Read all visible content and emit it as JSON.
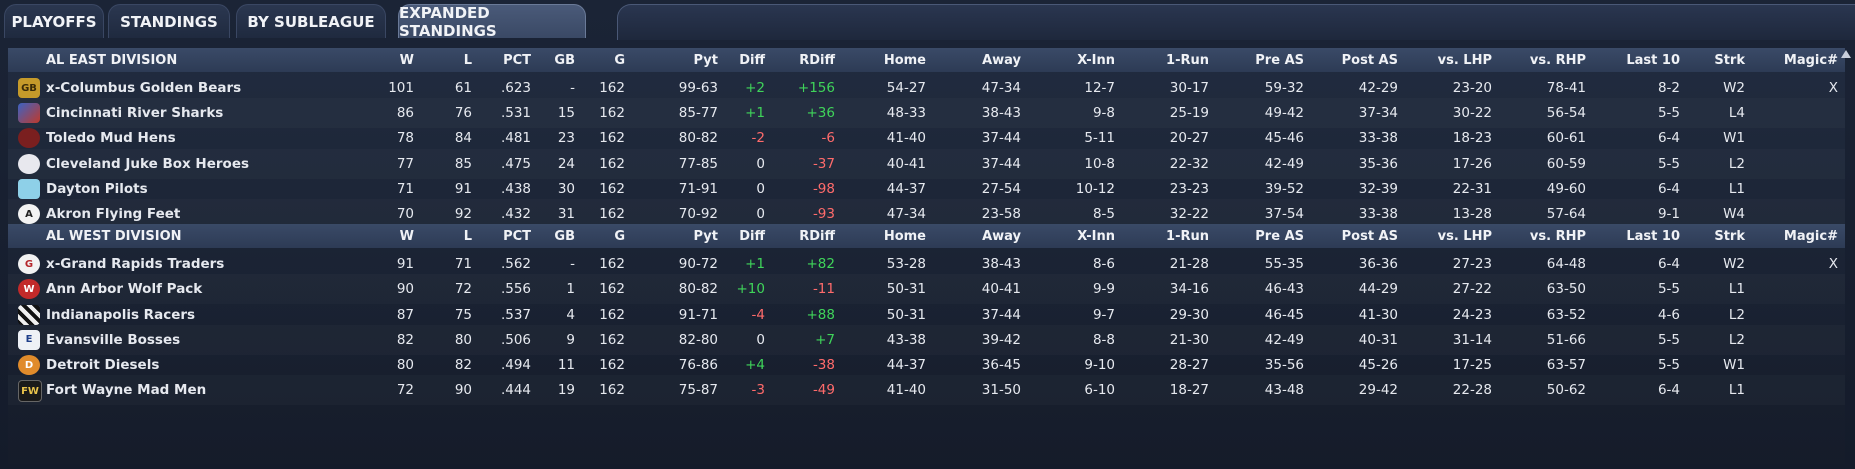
{
  "tabs": [
    {
      "label": "PLAYOFFS",
      "active": false
    },
    {
      "label": "STANDINGS",
      "active": false
    },
    {
      "label": "BY SUBLEAGUE",
      "active": false
    },
    {
      "label": "EXPANDED STANDINGS",
      "active": true
    }
  ],
  "columns": [
    "W",
    "L",
    "PCT",
    "GB",
    "G",
    "Pyt",
    "Diff",
    "RDiff",
    "Home",
    "Away",
    "X-Inn",
    "1-Run",
    "Pre AS",
    "Post AS",
    "vs. LHP",
    "vs. RHP",
    "Last 10",
    "Strk",
    "Magic#"
  ],
  "colors": {
    "positive": "#3fd45a",
    "negative": "#ff6b6b"
  },
  "divisions": [
    {
      "name": "AL EAST DIVISION",
      "teams": [
        {
          "name": "x-Columbus Golden Bears",
          "logo_icon": "golden-bears-logo-icon",
          "logo_text": "GB",
          "W": "101",
          "L": "61",
          "PCT": ".623",
          "GB": "-",
          "G": "162",
          "Pyt": "99-63",
          "Diff": "+2",
          "RDiff": "+156",
          "Home": "54-27",
          "Away": "47-34",
          "XInn": "12-7",
          "OneRun": "30-17",
          "PreAS": "59-32",
          "PostAS": "42-29",
          "vsLHP": "23-20",
          "vsRHP": "78-41",
          "Last10": "8-2",
          "Strk": "W2",
          "Magic": "X"
        },
        {
          "name": "Cincinnati River Sharks",
          "logo_icon": "river-sharks-logo-icon",
          "logo_text": "",
          "W": "86",
          "L": "76",
          "PCT": ".531",
          "GB": "15",
          "G": "162",
          "Pyt": "85-77",
          "Diff": "+1",
          "RDiff": "+36",
          "Home": "48-33",
          "Away": "38-43",
          "XInn": "9-8",
          "OneRun": "25-19",
          "PreAS": "49-42",
          "PostAS": "37-34",
          "vsLHP": "30-22",
          "vsRHP": "56-54",
          "Last10": "5-5",
          "Strk": "L4",
          "Magic": ""
        },
        {
          "name": "Toledo  Mud Hens",
          "logo_icon": "mud-hens-logo-icon",
          "logo_text": "",
          "W": "78",
          "L": "84",
          "PCT": ".481",
          "GB": "23",
          "G": "162",
          "Pyt": "80-82",
          "Diff": "-2",
          "RDiff": "-6",
          "Home": "41-40",
          "Away": "37-44",
          "XInn": "5-11",
          "OneRun": "20-27",
          "PreAS": "45-46",
          "PostAS": "33-38",
          "vsLHP": "18-23",
          "vsRHP": "60-61",
          "Last10": "6-4",
          "Strk": "W1",
          "Magic": ""
        },
        {
          "name": "Cleveland Juke Box Heroes",
          "logo_icon": "juke-box-heroes-logo-icon",
          "logo_text": "",
          "W": "77",
          "L": "85",
          "PCT": ".475",
          "GB": "24",
          "G": "162",
          "Pyt": "77-85",
          "Diff": "0",
          "RDiff": "-37",
          "Home": "40-41",
          "Away": "37-44",
          "XInn": "10-8",
          "OneRun": "22-32",
          "PreAS": "42-49",
          "PostAS": "35-36",
          "vsLHP": "17-26",
          "vsRHP": "60-59",
          "Last10": "5-5",
          "Strk": "L2",
          "Magic": ""
        },
        {
          "name": "Dayton Pilots",
          "logo_icon": "pilots-logo-icon",
          "logo_text": "",
          "W": "71",
          "L": "91",
          "PCT": ".438",
          "GB": "30",
          "G": "162",
          "Pyt": "71-91",
          "Diff": "0",
          "RDiff": "-98",
          "Home": "44-37",
          "Away": "27-54",
          "XInn": "10-12",
          "OneRun": "23-23",
          "PreAS": "39-52",
          "PostAS": "32-39",
          "vsLHP": "22-31",
          "vsRHP": "49-60",
          "Last10": "6-4",
          "Strk": "L1",
          "Magic": ""
        },
        {
          "name": "Akron  Flying Feet",
          "logo_icon": "flying-feet-logo-icon",
          "logo_text": "A",
          "W": "70",
          "L": "92",
          "PCT": ".432",
          "GB": "31",
          "G": "162",
          "Pyt": "70-92",
          "Diff": "0",
          "RDiff": "-93",
          "Home": "47-34",
          "Away": "23-58",
          "XInn": "8-5",
          "OneRun": "32-22",
          "PreAS": "37-54",
          "PostAS": "33-38",
          "vsLHP": "13-28",
          "vsRHP": "57-64",
          "Last10": "9-1",
          "Strk": "W4",
          "Magic": ""
        }
      ]
    },
    {
      "name": "AL WEST DIVISION",
      "teams": [
        {
          "name": "x-Grand Rapids Traders",
          "logo_icon": "traders-logo-icon",
          "logo_text": "G",
          "W": "91",
          "L": "71",
          "PCT": ".562",
          "GB": "-",
          "G": "162",
          "Pyt": "90-72",
          "Diff": "+1",
          "RDiff": "+82",
          "Home": "53-28",
          "Away": "38-43",
          "XInn": "8-6",
          "OneRun": "21-28",
          "PreAS": "55-35",
          "PostAS": "36-36",
          "vsLHP": "27-23",
          "vsRHP": "64-48",
          "Last10": "6-4",
          "Strk": "W2",
          "Magic": "X"
        },
        {
          "name": "Ann Arbor Wolf Pack",
          "logo_icon": "wolf-pack-logo-icon",
          "logo_text": "W",
          "W": "90",
          "L": "72",
          "PCT": ".556",
          "GB": "1",
          "G": "162",
          "Pyt": "80-82",
          "Diff": "+10",
          "RDiff": "-11",
          "Home": "50-31",
          "Away": "40-41",
          "XInn": "9-9",
          "OneRun": "34-16",
          "PreAS": "46-43",
          "PostAS": "44-29",
          "vsLHP": "27-22",
          "vsRHP": "63-50",
          "Last10": "5-5",
          "Strk": "L1",
          "Magic": ""
        },
        {
          "name": "Indianapolis Racers",
          "logo_icon": "racers-logo-icon",
          "logo_text": "",
          "W": "87",
          "L": "75",
          "PCT": ".537",
          "GB": "4",
          "G": "162",
          "Pyt": "91-71",
          "Diff": "-4",
          "RDiff": "+88",
          "Home": "50-31",
          "Away": "37-44",
          "XInn": "9-7",
          "OneRun": "29-30",
          "PreAS": "46-45",
          "PostAS": "41-30",
          "vsLHP": "24-23",
          "vsRHP": "63-52",
          "Last10": "4-6",
          "Strk": "L2",
          "Magic": ""
        },
        {
          "name": "Evansville Bosses",
          "logo_icon": "bosses-logo-icon",
          "logo_text": "E",
          "W": "82",
          "L": "80",
          "PCT": ".506",
          "GB": "9",
          "G": "162",
          "Pyt": "82-80",
          "Diff": "0",
          "RDiff": "+7",
          "Home": "43-38",
          "Away": "39-42",
          "XInn": "8-8",
          "OneRun": "21-30",
          "PreAS": "42-49",
          "PostAS": "40-31",
          "vsLHP": "31-14",
          "vsRHP": "51-66",
          "Last10": "5-5",
          "Strk": "L2",
          "Magic": ""
        },
        {
          "name": "Detroit Diesels",
          "logo_icon": "diesels-logo-icon",
          "logo_text": "D",
          "W": "80",
          "L": "82",
          "PCT": ".494",
          "GB": "11",
          "G": "162",
          "Pyt": "76-86",
          "Diff": "+4",
          "RDiff": "-38",
          "Home": "44-37",
          "Away": "36-45",
          "XInn": "9-10",
          "OneRun": "28-27",
          "PreAS": "35-56",
          "PostAS": "45-26",
          "vsLHP": "17-25",
          "vsRHP": "63-57",
          "Last10": "5-5",
          "Strk": "W1",
          "Magic": ""
        },
        {
          "name": "Fort Wayne Mad Men",
          "logo_icon": "mad-men-logo-icon",
          "logo_text": "FW",
          "W": "72",
          "L": "90",
          "PCT": ".444",
          "GB": "19",
          "G": "162",
          "Pyt": "75-87",
          "Diff": "-3",
          "RDiff": "-49",
          "Home": "41-40",
          "Away": "31-50",
          "XInn": "6-10",
          "OneRun": "18-27",
          "PreAS": "43-48",
          "PostAS": "29-42",
          "vsLHP": "22-28",
          "vsRHP": "50-62",
          "Last10": "6-4",
          "Strk": "L1",
          "Magic": ""
        }
      ]
    }
  ]
}
